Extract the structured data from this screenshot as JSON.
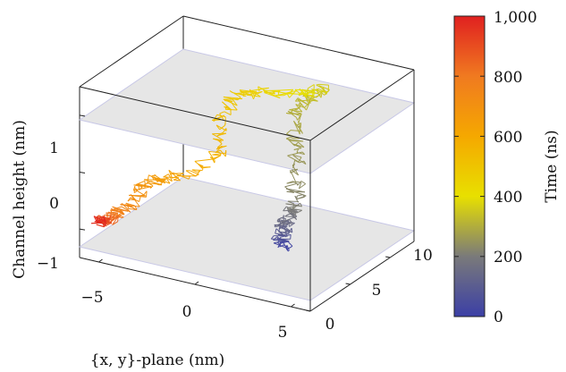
{
  "chart_data": {
    "type": "scatter",
    "subtype": "3d-trajectory",
    "title": "",
    "xlabel": "{x, y}-plane (nm)",
    "ylabel": "",
    "zlabel": "Channel height (nm)",
    "colorbar_label": "Time (ns)",
    "xlim": [
      -6,
      6
    ],
    "ylim": [
      0,
      13
    ],
    "zlim": [
      -1.5,
      1.5
    ],
    "x_ticks": [
      "−5",
      "0",
      "5"
    ],
    "y_ticks": [
      "0",
      "5",
      "10"
    ],
    "z_ticks": [
      "−1",
      "0",
      "1"
    ],
    "colorbar_ticks": [
      "0",
      "200",
      "400",
      "600",
      "800",
      "1,000"
    ],
    "colorbar_range": [
      0,
      1000
    ],
    "colormap": [
      "#3b3fa6",
      "#7a7a7a",
      "#e8e000",
      "#f5a800",
      "#f07a20",
      "#e02020"
    ],
    "planes_z": [
      -1.2,
      1.2
    ],
    "plane_color": "#e6e6e6",
    "grid": false,
    "trajectory": [
      {
        "time": 0,
        "x": 2.6,
        "y": 5.0,
        "z": -1.15
      },
      {
        "time": 60,
        "x": 2.2,
        "y": 5.5,
        "z": -1.05
      },
      {
        "time": 120,
        "x": 2.0,
        "y": 6.2,
        "z": -0.95
      },
      {
        "time": 170,
        "x": 1.9,
        "y": 7.0,
        "z": -0.85
      },
      {
        "time": 210,
        "x": 1.9,
        "y": 7.8,
        "z": -0.7
      },
      {
        "time": 240,
        "x": 1.8,
        "y": 8.4,
        "z": -0.3
      },
      {
        "time": 270,
        "x": 1.6,
        "y": 8.8,
        "z": 0.3
      },
      {
        "time": 300,
        "x": 1.3,
        "y": 9.2,
        "z": 0.75
      },
      {
        "time": 330,
        "x": 1.8,
        "y": 9.8,
        "z": 1.0
      },
      {
        "time": 360,
        "x": 2.5,
        "y": 10.3,
        "z": 1.15
      },
      {
        "time": 400,
        "x": 1.4,
        "y": 9.8,
        "z": 1.05
      },
      {
        "time": 440,
        "x": 0.0,
        "y": 9.0,
        "z": 1.05
      },
      {
        "time": 480,
        "x": -1.2,
        "y": 8.0,
        "z": 1.0
      },
      {
        "time": 520,
        "x": -1.3,
        "y": 6.5,
        "z": 0.7
      },
      {
        "time": 560,
        "x": -0.8,
        "y": 5.0,
        "z": 0.3
      },
      {
        "time": 600,
        "x": -1.8,
        "y": 4.0,
        "z": -0.05
      },
      {
        "time": 640,
        "x": -3.2,
        "y": 3.6,
        "z": -0.25
      },
      {
        "time": 680,
        "x": -3.8,
        "y": 2.8,
        "z": -0.3
      },
      {
        "time": 720,
        "x": -4.3,
        "y": 2.3,
        "z": -0.65
      },
      {
        "time": 780,
        "x": -5.0,
        "y": 2.0,
        "z": -0.85
      },
      {
        "time": 850,
        "x": -5.5,
        "y": 2.1,
        "z": -1.0
      },
      {
        "time": 920,
        "x": -5.8,
        "y": 2.3,
        "z": -1.05
      },
      {
        "time": 1000,
        "x": -6.0,
        "y": 2.4,
        "z": -1.1
      }
    ]
  }
}
